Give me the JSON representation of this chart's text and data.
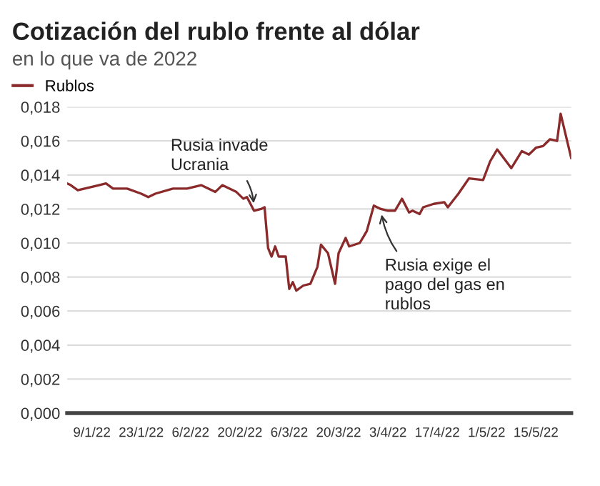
{
  "chart_data": {
    "type": "line",
    "title": "Cotización del rublo frente al dólar",
    "subtitle": "en lo que va de 2022",
    "x": [
      "2022-01-02",
      "2022-01-03",
      "2022-01-05",
      "2022-01-11",
      "2022-01-13",
      "2022-01-15",
      "2022-01-19",
      "2022-01-23",
      "2022-01-25",
      "2022-01-27",
      "2022-02-01",
      "2022-02-05",
      "2022-02-09",
      "2022-02-13",
      "2022-02-15",
      "2022-02-19",
      "2022-02-21",
      "2022-02-22",
      "2022-02-24",
      "2022-02-26",
      "2022-02-27",
      "2022-02-28",
      "2022-03-01",
      "2022-03-02",
      "2022-03-03",
      "2022-03-05",
      "2022-03-06",
      "2022-03-07",
      "2022-03-08",
      "2022-03-10",
      "2022-03-12",
      "2022-03-14",
      "2022-03-15",
      "2022-03-17",
      "2022-03-19",
      "2022-03-20",
      "2022-03-22",
      "2022-03-23",
      "2022-03-26",
      "2022-03-28",
      "2022-03-30",
      "2022-04-01",
      "2022-04-03",
      "2022-04-05",
      "2022-04-07",
      "2022-04-09",
      "2022-04-10",
      "2022-04-12",
      "2022-04-13",
      "2022-04-16",
      "2022-04-19",
      "2022-04-20",
      "2022-04-23",
      "2022-04-26",
      "2022-04-30",
      "2022-05-02",
      "2022-05-04",
      "2022-05-08",
      "2022-05-11",
      "2022-05-13",
      "2022-05-15",
      "2022-05-17",
      "2022-05-19",
      "2022-05-21",
      "2022-05-22",
      "2022-05-25"
    ],
    "series": [
      {
        "name": "Rublos",
        "color": "#8b2a2a",
        "values": [
          0.0135,
          0.0134,
          0.0131,
          0.0134,
          0.0135,
          0.0132,
          0.0132,
          0.0129,
          0.0127,
          0.0129,
          0.0132,
          0.0132,
          0.0134,
          0.013,
          0.0134,
          0.013,
          0.0126,
          0.0127,
          0.0119,
          0.012,
          0.0121,
          0.0097,
          0.0092,
          0.0098,
          0.0092,
          0.0092,
          0.0073,
          0.0077,
          0.0072,
          0.0075,
          0.0076,
          0.0086,
          0.0099,
          0.0094,
          0.0076,
          0.0094,
          0.0103,
          0.0098,
          0.01,
          0.0107,
          0.0122,
          0.012,
          0.0119,
          0.0119,
          0.0126,
          0.0118,
          0.0119,
          0.0117,
          0.0121,
          0.0123,
          0.0124,
          0.0121,
          0.0129,
          0.0138,
          0.0137,
          0.0148,
          0.0155,
          0.0144,
          0.0154,
          0.0152,
          0.0156,
          0.0157,
          0.0161,
          0.016,
          0.0176,
          0.015
        ]
      }
    ],
    "xlim": [
      "2022-01-02",
      "2022-05-25"
    ],
    "xticks": [
      {
        "value": "2022-01-09",
        "label": "9/1/22"
      },
      {
        "value": "2022-01-23",
        "label": "23/1/22"
      },
      {
        "value": "2022-02-06",
        "label": "6/2/22"
      },
      {
        "value": "2022-02-20",
        "label": "20/2/22"
      },
      {
        "value": "2022-03-06",
        "label": "6/3/22"
      },
      {
        "value": "2022-03-20",
        "label": "20/3/22"
      },
      {
        "value": "2022-04-03",
        "label": "3/4/22"
      },
      {
        "value": "2022-04-17",
        "label": "17/4/22"
      },
      {
        "value": "2022-05-01",
        "label": "1/5/22"
      },
      {
        "value": "2022-05-15",
        "label": "15/5/22"
      }
    ],
    "ylim": [
      0,
      0.018
    ],
    "yticks": [
      {
        "value": 0,
        "label": "0,000"
      },
      {
        "value": 0.002,
        "label": "0,002"
      },
      {
        "value": 0.004,
        "label": "0,004"
      },
      {
        "value": 0.006,
        "label": "0,006"
      },
      {
        "value": 0.008,
        "label": "0,008"
      },
      {
        "value": 0.01,
        "label": "0,010"
      },
      {
        "value": 0.012,
        "label": "0,012"
      },
      {
        "value": 0.014,
        "label": "0,014"
      },
      {
        "value": 0.016,
        "label": "0,016"
      },
      {
        "value": 0.018,
        "label": "0,018"
      }
    ],
    "annotations": [
      {
        "text": "Rusia invade\nUcrania",
        "x": "2022-02-24",
        "y": 0.0121
      },
      {
        "text": "Rusia exige el\npago del gas en\nrublos",
        "x": "2022-04-01",
        "y": 0.0119
      }
    ],
    "grid": "y",
    "legend": "top left",
    "marker": "none",
    "line_style": "solid"
  }
}
